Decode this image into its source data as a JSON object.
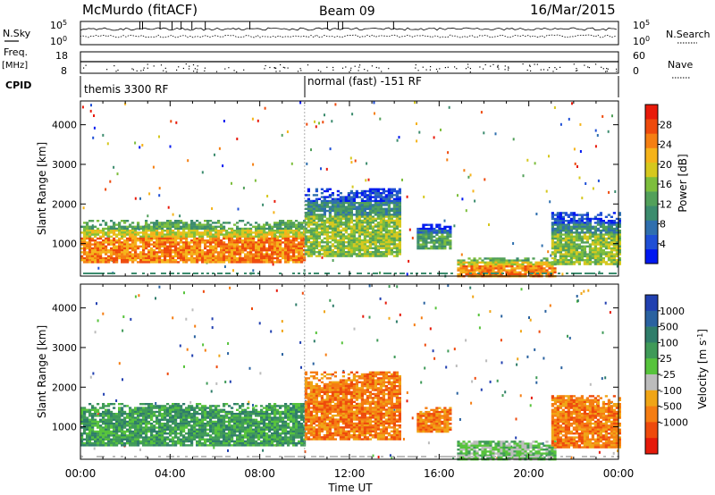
{
  "header": {
    "station": "McMurdo (fitACF)",
    "beam": "Beam 09",
    "date": "16/Mar/2015"
  },
  "side_labels": {
    "nsky": "N.Sky",
    "freq": "Freq.",
    "mhz": "[MHz]",
    "cpid": "CPID",
    "nsearch": "N.Search",
    "nave": "Nave"
  },
  "noise_panel": {
    "left_ticks": [
      {
        "label": "10^5",
        "value": 5
      },
      {
        "label": "10^0",
        "value": 0
      }
    ],
    "right_ticks": [
      {
        "label": "10^5",
        "value": 5
      },
      {
        "label": "10^0",
        "value": 0
      }
    ]
  },
  "freq_panel": {
    "left_ticks": [
      {
        "label": "18",
        "value": 18
      },
      {
        "label": "8",
        "value": 8
      }
    ],
    "right_ticks": [
      {
        "label": "60",
        "value": 60
      },
      {
        "label": "0",
        "value": 0
      }
    ]
  },
  "cpid": [
    {
      "label": "themis 3300 RF",
      "start_hour": 0,
      "end_hour": 10
    },
    {
      "label": "normal (fast) -151 RF",
      "start_hour": 10,
      "end_hour": 24
    }
  ],
  "chart_data": [
    {
      "type": "heatmap",
      "name": "power",
      "ylabel": "Slant Range [km]",
      "colorbar_label": "Power [dB]",
      "xlim": [
        0,
        24
      ],
      "ylim": [
        180,
        4600
      ],
      "yticks": [
        1000,
        2000,
        3000,
        4000
      ],
      "colorbar": {
        "range": [
          0,
          32
        ],
        "ticks": [
          4,
          8,
          12,
          16,
          20,
          24,
          28
        ],
        "colors": [
          "#0018f0",
          "#1f4fd6",
          "#2f6fae",
          "#3c8c6e",
          "#52a05a",
          "#7dbe3c",
          "#d6c81e",
          "#f5b31a",
          "#f57f12",
          "#ee4a0c",
          "#e81a0a"
        ]
      },
      "scatter_regions": [
        {
          "hours": [
            0.0,
            10.0
          ],
          "range_km": [
            550,
            1600
          ],
          "power_db": 24
        },
        {
          "hours": [
            10.0,
            14.3
          ],
          "range_km": [
            700,
            2400
          ],
          "power_db": 16
        },
        {
          "hours": [
            15.0,
            16.5
          ],
          "range_km": [
            900,
            1500
          ],
          "power_db": 12
        },
        {
          "hours": [
            16.8,
            21.2
          ],
          "range_km": [
            200,
            650
          ],
          "power_db": 24
        },
        {
          "hours": [
            21.0,
            24.0
          ],
          "range_km": [
            500,
            1800
          ],
          "power_db": 16
        }
      ]
    },
    {
      "type": "heatmap",
      "name": "velocity",
      "ylabel": "Slant Range [km]",
      "colorbar_label": "Velocity [m s^-1]",
      "xlabel": "Time UT",
      "xlim": [
        0,
        24
      ],
      "ylim": [
        180,
        4600
      ],
      "yticks": [
        1000,
        2000,
        3000,
        4000
      ],
      "xticks": [
        "00:00",
        "04:00",
        "08:00",
        "12:00",
        "16:00",
        "20:00",
        "00:00"
      ],
      "colorbar": {
        "labels": [
          "1000",
          "500",
          "100",
          "25",
          "-25",
          "-100",
          "-500",
          "-1000"
        ],
        "colors": [
          "#2140b0",
          "#2a62a0",
          "#2f7d6a",
          "#3f9a58",
          "#57c33c",
          "#bcbcbc",
          "#f0a516",
          "#f57d12",
          "#ee4a0c",
          "#e51a0a"
        ]
      },
      "scatter_regions": [
        {
          "hours": [
            0.0,
            10.0
          ],
          "range_km": [
            550,
            1600
          ],
          "velocity": 100
        },
        {
          "hours": [
            10.0,
            14.3
          ],
          "range_km": [
            700,
            2400
          ],
          "velocity": -100
        },
        {
          "hours": [
            15.0,
            16.5
          ],
          "range_km": [
            900,
            1500
          ],
          "velocity": -100
        },
        {
          "hours": [
            16.8,
            21.2
          ],
          "range_km": [
            200,
            650
          ],
          "velocity": 25
        },
        {
          "hours": [
            21.0,
            24.0
          ],
          "range_km": [
            500,
            1800
          ],
          "velocity": -100
        }
      ]
    }
  ]
}
